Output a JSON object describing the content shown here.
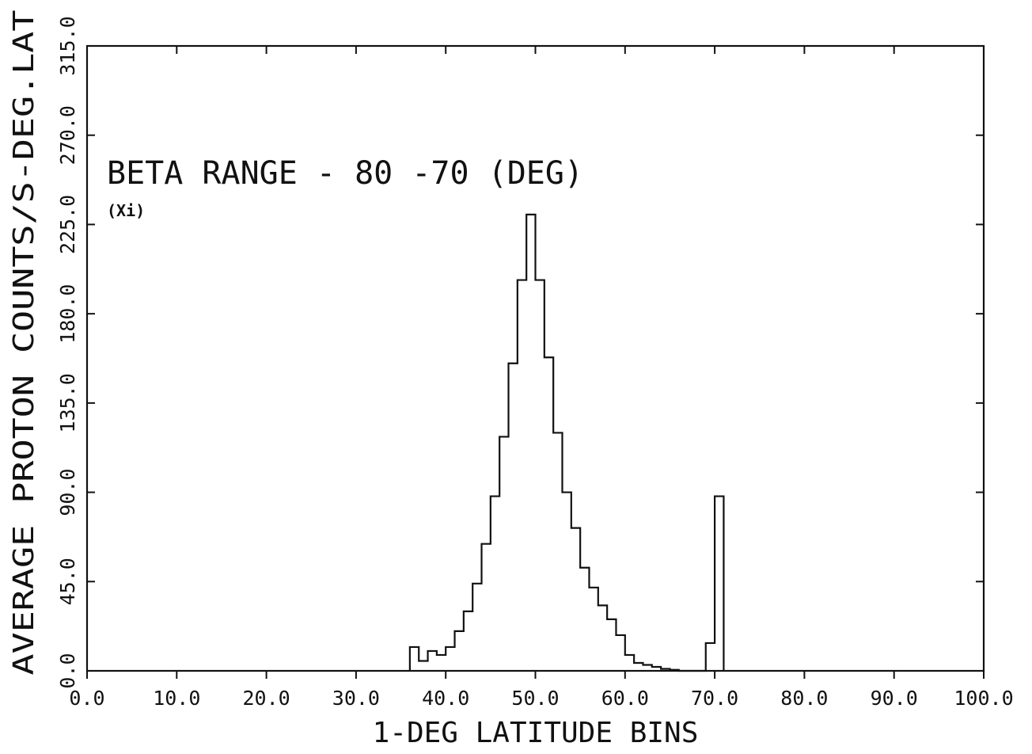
{
  "chart_data": {
    "type": "bar",
    "title": "",
    "xlabel": "1-DEG LATITUDE BINS",
    "ylabel": "AVERAGE PROTON COUNTS/S-DEG.LAT",
    "xlim": [
      0,
      100
    ],
    "ylim": [
      0,
      315
    ],
    "grid": false,
    "x_ticks": [
      "0.0",
      "10.0",
      "20.0",
      "30.0",
      "40.0",
      "50.0",
      "60.0",
      "70.0",
      "80.0",
      "90.0",
      "100.0"
    ],
    "y_ticks": [
      "0.0",
      "45.0",
      "90.0",
      "135.0",
      "180.0",
      "225.0",
      "270.0",
      "315.0"
    ],
    "annotations": [
      "BETA RANGE - 80 -70 (DEG)",
      "(Xi)"
    ],
    "bin_width": 1,
    "bins": [
      {
        "start": 36,
        "value": 12
      },
      {
        "start": 37,
        "value": 5
      },
      {
        "start": 38,
        "value": 10
      },
      {
        "start": 39,
        "value": 8
      },
      {
        "start": 40,
        "value": 12
      },
      {
        "start": 41,
        "value": 20
      },
      {
        "start": 42,
        "value": 30
      },
      {
        "start": 43,
        "value": 44
      },
      {
        "start": 44,
        "value": 64
      },
      {
        "start": 45,
        "value": 88
      },
      {
        "start": 46,
        "value": 118
      },
      {
        "start": 47,
        "value": 155
      },
      {
        "start": 48,
        "value": 197
      },
      {
        "start": 49,
        "value": 230
      },
      {
        "start": 50,
        "value": 197
      },
      {
        "start": 51,
        "value": 158
      },
      {
        "start": 52,
        "value": 120
      },
      {
        "start": 53,
        "value": 90
      },
      {
        "start": 54,
        "value": 72
      },
      {
        "start": 55,
        "value": 52
      },
      {
        "start": 56,
        "value": 42
      },
      {
        "start": 57,
        "value": 33
      },
      {
        "start": 58,
        "value": 26
      },
      {
        "start": 59,
        "value": 18
      },
      {
        "start": 60,
        "value": 8
      },
      {
        "start": 61,
        "value": 4
      },
      {
        "start": 62,
        "value": 3
      },
      {
        "start": 63,
        "value": 2
      },
      {
        "start": 64,
        "value": 1
      },
      {
        "start": 65,
        "value": 0.5
      },
      {
        "start": 66,
        "value": 0
      },
      {
        "start": 67,
        "value": 0
      },
      {
        "start": 68,
        "value": 0
      },
      {
        "start": 69,
        "value": 14
      },
      {
        "start": 70,
        "value": 88
      }
    ]
  }
}
